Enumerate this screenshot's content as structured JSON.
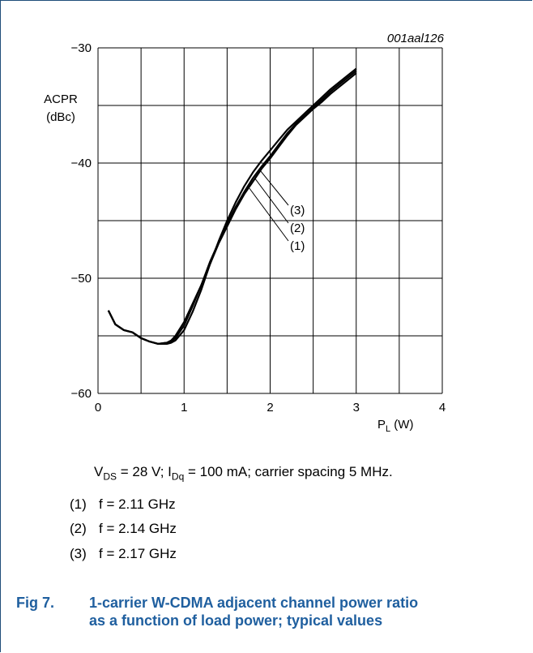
{
  "figure_id": "001aal126",
  "conditions": {
    "vds_label": "V",
    "vds_sub": "DS",
    "vds_rest": " = 28 V; I",
    "idq_sub": "Dq",
    "idq_rest": " = 100 mA; carrier spacing 5 MHz."
  },
  "legend": [
    {
      "num": "(1)",
      "text": "f = 2.11 GHz"
    },
    {
      "num": "(2)",
      "text": "f = 2.14 GHz"
    },
    {
      "num": "(3)",
      "text": "f = 2.17 GHz"
    }
  ],
  "caption": {
    "fig_no": "Fig 7.",
    "text": "1-carrier W-CDMA adjacent channel power ratio as a function of load power; typical values"
  },
  "chart_data": {
    "type": "line",
    "title": "",
    "xlabel_main": "P",
    "xlabel_sub": "L",
    "xlabel_unit": " (W)",
    "ylabel_line1": "ACPR",
    "ylabel_line2": "(dBc)",
    "xlim": [
      0,
      4
    ],
    "ylim": [
      -60,
      -30
    ],
    "x_tick_labels": [
      "0",
      "1",
      "2",
      "3",
      "4"
    ],
    "y_tick_labels": [
      "−30",
      "−40",
      "−50",
      "−60"
    ],
    "y_tick_values": [
      -30,
      -40,
      -50,
      -60
    ],
    "grid": true,
    "series_label_numbers": [
      "(3)",
      "(2)",
      "(1)"
    ],
    "series": [
      {
        "name": "(1)",
        "x": [
          0.12,
          0.2,
          0.3,
          0.4,
          0.5,
          0.6,
          0.7,
          0.8,
          0.85,
          0.9,
          1.0,
          1.1,
          1.2,
          1.3,
          1.4,
          1.5,
          1.6,
          1.7,
          1.8,
          1.9,
          2.0,
          2.1,
          2.2,
          2.3,
          2.4,
          2.5,
          2.6,
          2.7,
          2.8,
          2.9,
          3.0
        ],
        "y": [
          -52.8,
          -54.0,
          -54.5,
          -54.7,
          -55.2,
          -55.5,
          -55.7,
          -55.6,
          -55.4,
          -55.0,
          -53.8,
          -52.2,
          -50.6,
          -48.8,
          -47.0,
          -45.5,
          -44.0,
          -42.7,
          -41.6,
          -40.5,
          -39.6,
          -38.6,
          -37.6,
          -36.7,
          -36.0,
          -35.3,
          -34.7,
          -34.0,
          -33.4,
          -32.8,
          -32.2
        ]
      },
      {
        "name": "(2)",
        "x": [
          0.12,
          0.2,
          0.3,
          0.4,
          0.5,
          0.6,
          0.7,
          0.8,
          0.85,
          0.9,
          1.0,
          1.1,
          1.2,
          1.3,
          1.4,
          1.5,
          1.6,
          1.7,
          1.8,
          1.9,
          2.0,
          2.1,
          2.2,
          2.3,
          2.4,
          2.5,
          2.6,
          2.7,
          2.8,
          2.9,
          3.0
        ],
        "y": [
          -52.8,
          -54.0,
          -54.5,
          -54.7,
          -55.2,
          -55.5,
          -55.7,
          -55.6,
          -55.5,
          -55.2,
          -54.1,
          -52.4,
          -50.6,
          -48.6,
          -46.9,
          -45.3,
          -43.8,
          -42.5,
          -41.3,
          -40.3,
          -39.4,
          -38.4,
          -37.4,
          -36.6,
          -35.9,
          -35.2,
          -34.5,
          -33.8,
          -33.2,
          -32.6,
          -32.0
        ]
      },
      {
        "name": "(3)",
        "x": [
          0.12,
          0.2,
          0.3,
          0.4,
          0.5,
          0.6,
          0.7,
          0.8,
          0.85,
          0.9,
          1.0,
          1.1,
          1.2,
          1.3,
          1.4,
          1.5,
          1.6,
          1.7,
          1.8,
          1.9,
          2.0,
          2.1,
          2.2,
          2.3,
          2.4,
          2.5,
          2.6,
          2.7,
          2.8,
          2.9,
          3.0
        ],
        "y": [
          -52.8,
          -54.0,
          -54.5,
          -54.7,
          -55.2,
          -55.5,
          -55.7,
          -55.7,
          -55.6,
          -55.4,
          -54.5,
          -52.9,
          -51.0,
          -48.8,
          -46.8,
          -45.0,
          -43.4,
          -42.0,
          -40.8,
          -39.8,
          -38.9,
          -38.0,
          -37.1,
          -36.4,
          -35.7,
          -35.0,
          -34.3,
          -33.6,
          -33.0,
          -32.4,
          -31.8
        ]
      }
    ]
  }
}
